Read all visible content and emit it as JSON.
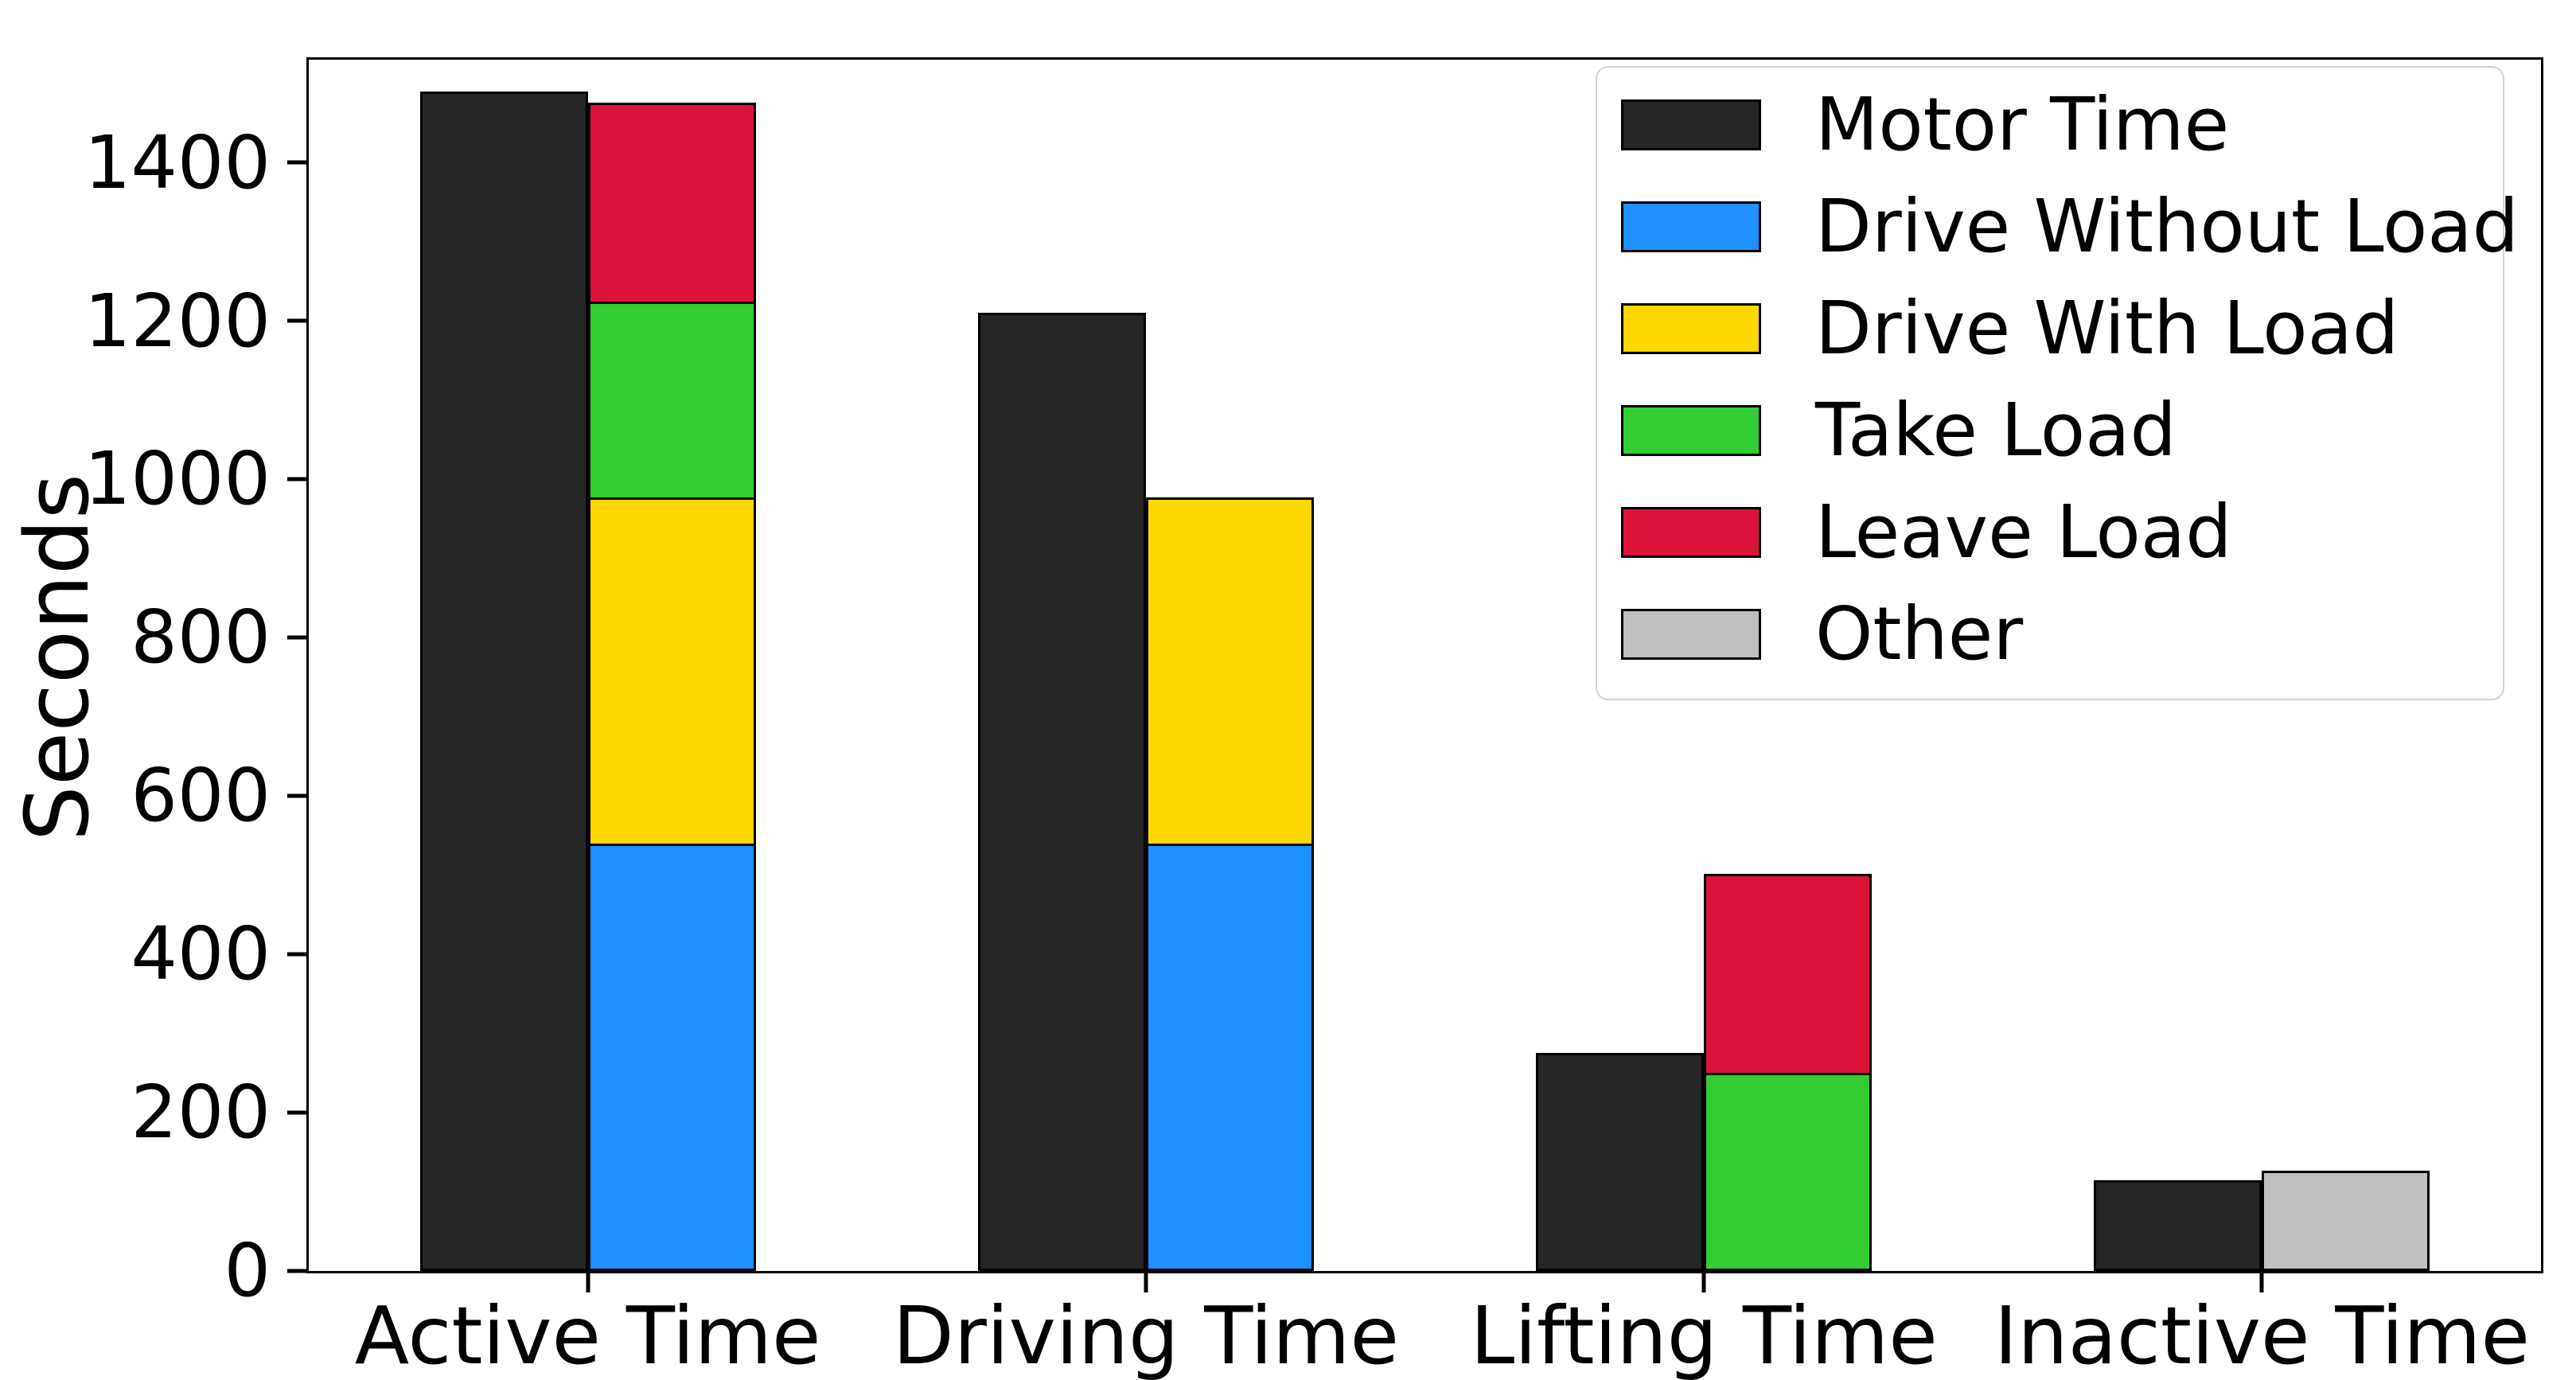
{
  "chart_data": {
    "type": "bar",
    "title": "",
    "xlabel": "",
    "ylabel": "Seconds",
    "categories": [
      "Active Time",
      "Driving Time",
      "Lifting Time",
      "Inactive Time"
    ],
    "yticks": [
      0,
      200,
      400,
      600,
      800,
      1000,
      1200,
      1400
    ],
    "ylim": [
      0,
      1530
    ],
    "grid": false,
    "legend_position": "upper right",
    "background": "#ffffff",
    "bar_edge_color": "#000000",
    "series": [
      {
        "name": "Motor Time",
        "role": "grouped",
        "color": "#262626",
        "values": [
          1490,
          1210,
          275,
          115
        ]
      },
      {
        "name": "Drive Without Load",
        "role": "stacked",
        "color": "#1E90FF",
        "values": [
          540,
          540,
          0,
          0
        ]
      },
      {
        "name": "Drive With Load",
        "role": "stacked",
        "color": "#FFD700",
        "values": [
          440,
          440,
          0,
          0
        ]
      },
      {
        "name": "Take Load",
        "role": "stacked",
        "color": "#32CD32",
        "values": [
          250,
          0,
          250,
          0
        ]
      },
      {
        "name": "Leave Load",
        "role": "stacked",
        "color": "#DC143C",
        "values": [
          255,
          0,
          255,
          0
        ]
      },
      {
        "name": "Other",
        "role": "stacked",
        "color": "#C0C0C0",
        "values": [
          0,
          0,
          0,
          127
        ]
      }
    ],
    "stack_totals": [
      1485,
      980,
      505,
      127
    ]
  }
}
